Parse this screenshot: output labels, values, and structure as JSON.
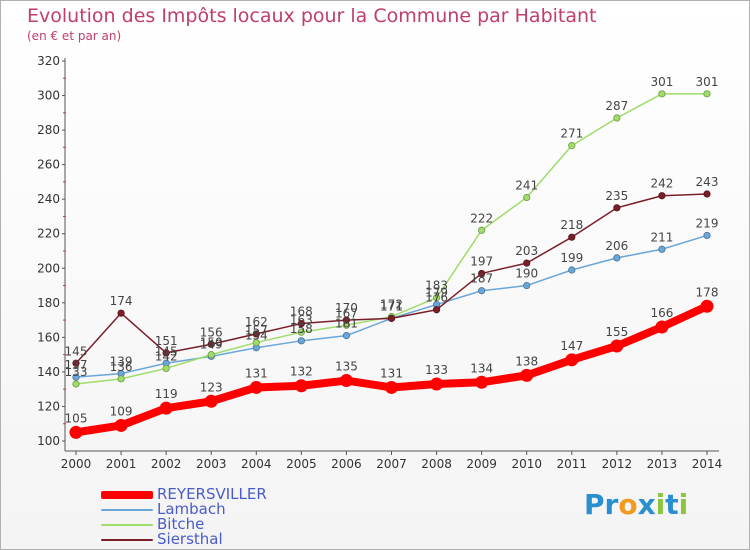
{
  "header": {
    "title": "Evolution des Impôts locaux pour la Commune par Habitant",
    "subtitle": "(en € et par an)"
  },
  "logo": {
    "text": "Proxiti",
    "letters": [
      {
        "char": "P",
        "color": "#2a8fd0"
      },
      {
        "char": "r",
        "color": "#2a8fd0"
      },
      {
        "char": "o",
        "color": "#f29a1f"
      },
      {
        "char": "x",
        "color": "#2a8fd0"
      },
      {
        "char": "i",
        "color": "#8cc63f"
      },
      {
        "char": "t",
        "color": "#2a8fd0"
      },
      {
        "char": "i",
        "color": "#8cc63f"
      }
    ]
  },
  "chart_data": {
    "type": "line",
    "title": "Evolution des Impôts locaux pour la Commune par Habitant",
    "ylabel": "(en € et par an)",
    "x": [
      "2000",
      "2001",
      "2002",
      "2003",
      "2004",
      "2005",
      "2006",
      "2007",
      "2008",
      "2009",
      "2010",
      "2011",
      "2012",
      "2013",
      "2014"
    ],
    "ylim": [
      100,
      320
    ],
    "yticks": [
      100,
      120,
      140,
      160,
      180,
      200,
      220,
      240,
      260,
      280,
      300,
      320
    ],
    "grid": false,
    "legend_position": "bottom-left",
    "series": [
      {
        "name": "REYERSVILLER",
        "color": "#ff0000",
        "emphasis": true,
        "values": [
          105,
          109,
          119,
          123,
          131,
          132,
          135,
          131,
          133,
          134,
          138,
          147,
          155,
          166,
          178
        ],
        "labels": [
          "105",
          "109",
          "119",
          "123",
          "131",
          "132",
          "135",
          "131",
          "133",
          "134",
          "138",
          "147",
          "155",
          "166",
          "178"
        ]
      },
      {
        "name": "Lambach",
        "color": "#6aa6d8",
        "emphasis": false,
        "values": [
          137,
          139,
          145,
          149,
          154,
          158,
          161,
          171,
          179,
          187,
          190,
          199,
          206,
          211,
          219
        ],
        "labels": [
          "137",
          "139",
          "145",
          "149",
          "154",
          "158",
          "161",
          "171",
          "179",
          "187",
          "190",
          "199",
          "206",
          "211",
          "219"
        ]
      },
      {
        "name": "Bitche",
        "color": "#9fdc6a",
        "emphasis": false,
        "values": [
          133,
          136,
          142,
          150,
          157,
          163,
          167,
          172,
          183,
          222,
          241,
          271,
          287,
          301,
          301
        ],
        "labels": [
          "133",
          "136",
          "142",
          "150",
          "157",
          "163",
          "167",
          "172",
          "183",
          "222",
          "241",
          "271",
          "287",
          "301",
          "301"
        ]
      },
      {
        "name": "Siersthal",
        "color": "#7a1f2a",
        "emphasis": false,
        "values": [
          145,
          174,
          151,
          156,
          162,
          168,
          170,
          171,
          176,
          197,
          203,
          218,
          235,
          242,
          243
        ],
        "labels": [
          "145",
          "174",
          "151",
          "156",
          "162",
          "168",
          "170",
          "171",
          "176",
          "197",
          "203",
          "218",
          "235",
          "242",
          "243"
        ]
      }
    ]
  }
}
